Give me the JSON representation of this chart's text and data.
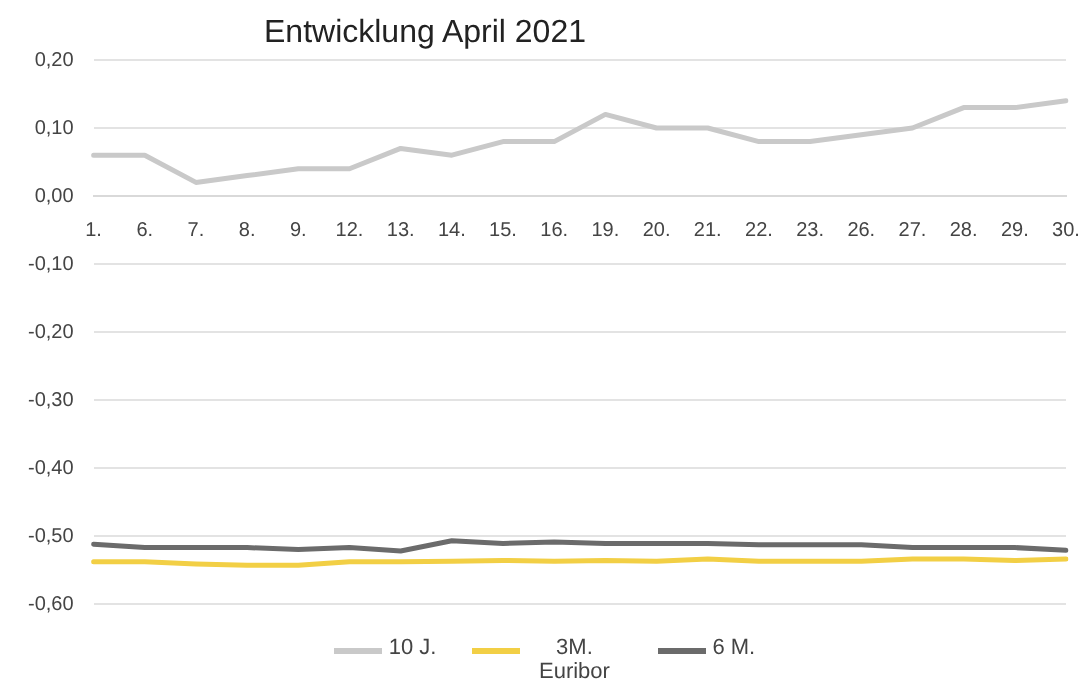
{
  "chart_data": {
    "type": "line",
    "title": "Entwicklung April 2021",
    "categories": [
      "1.",
      "6.",
      "7.",
      "8.",
      "9.",
      "12.",
      "13.",
      "14.",
      "15.",
      "16.",
      "19.",
      "20.",
      "21.",
      "22.",
      "23.",
      "26.",
      "27.",
      "28.",
      "29.",
      "30."
    ],
    "series": [
      {
        "name": "10 J.",
        "color": "#c9c9c9",
        "values": [
          0.06,
          0.06,
          0.02,
          0.03,
          0.04,
          0.04,
          0.07,
          0.06,
          0.08,
          0.08,
          0.12,
          0.1,
          0.1,
          0.08,
          0.08,
          0.09,
          0.1,
          0.13,
          0.13,
          0.14
        ]
      },
      {
        "name": "3M. Euribor",
        "color": "#f2cf45",
        "values": [
          -0.538,
          -0.538,
          -0.541,
          -0.543,
          -0.543,
          -0.538,
          -0.538,
          -0.537,
          -0.536,
          -0.537,
          -0.536,
          -0.537,
          -0.534,
          -0.537,
          -0.537,
          -0.537,
          -0.534,
          -0.534,
          -0.536,
          -0.534
        ]
      },
      {
        "name": "6 M.",
        "color": "#6b6b6b",
        "values": [
          -0.512,
          -0.517,
          -0.517,
          -0.517,
          -0.52,
          -0.517,
          -0.522,
          -0.507,
          -0.511,
          -0.509,
          -0.511,
          -0.511,
          -0.511,
          -0.513,
          -0.513,
          -0.513,
          -0.517,
          -0.517,
          -0.517,
          -0.521
        ]
      }
    ],
    "ylim": [
      -0.6,
      0.2
    ],
    "yticks": [
      {
        "value": -0.6,
        "label": "-0,60"
      },
      {
        "value": -0.5,
        "label": "-0,50"
      },
      {
        "value": -0.4,
        "label": "-0,40"
      },
      {
        "value": -0.3,
        "label": "-0,30"
      },
      {
        "value": -0.2,
        "label": "-0,20"
      },
      {
        "value": -0.1,
        "label": "-0,10"
      },
      {
        "value": 0,
        "label": "0,00"
      },
      {
        "value": 0.1,
        "label": "0,10"
      },
      {
        "value": 0.2,
        "label": "0,20"
      }
    ],
    "grid": "y",
    "legend": "bottom",
    "marker": "none",
    "line_style": "solid"
  }
}
